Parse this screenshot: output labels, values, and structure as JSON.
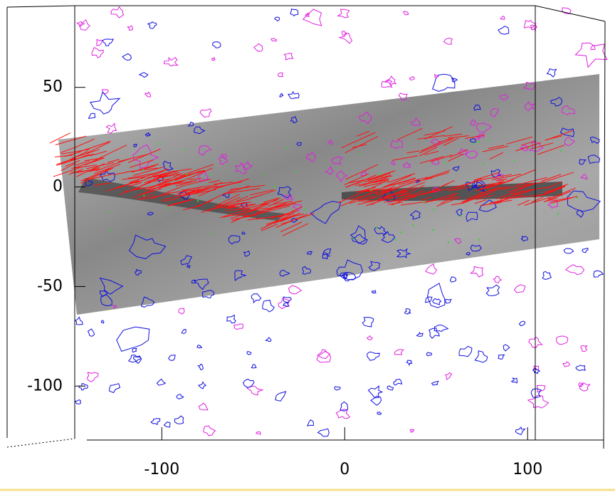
{
  "chart_data": {
    "type": "image",
    "xlim": [
      -141,
      140
    ],
    "ylim": [
      -126,
      91
    ],
    "xticks": [
      -100,
      0,
      100
    ],
    "yticks": [
      50,
      0,
      -50,
      -100
    ]
  }
}
